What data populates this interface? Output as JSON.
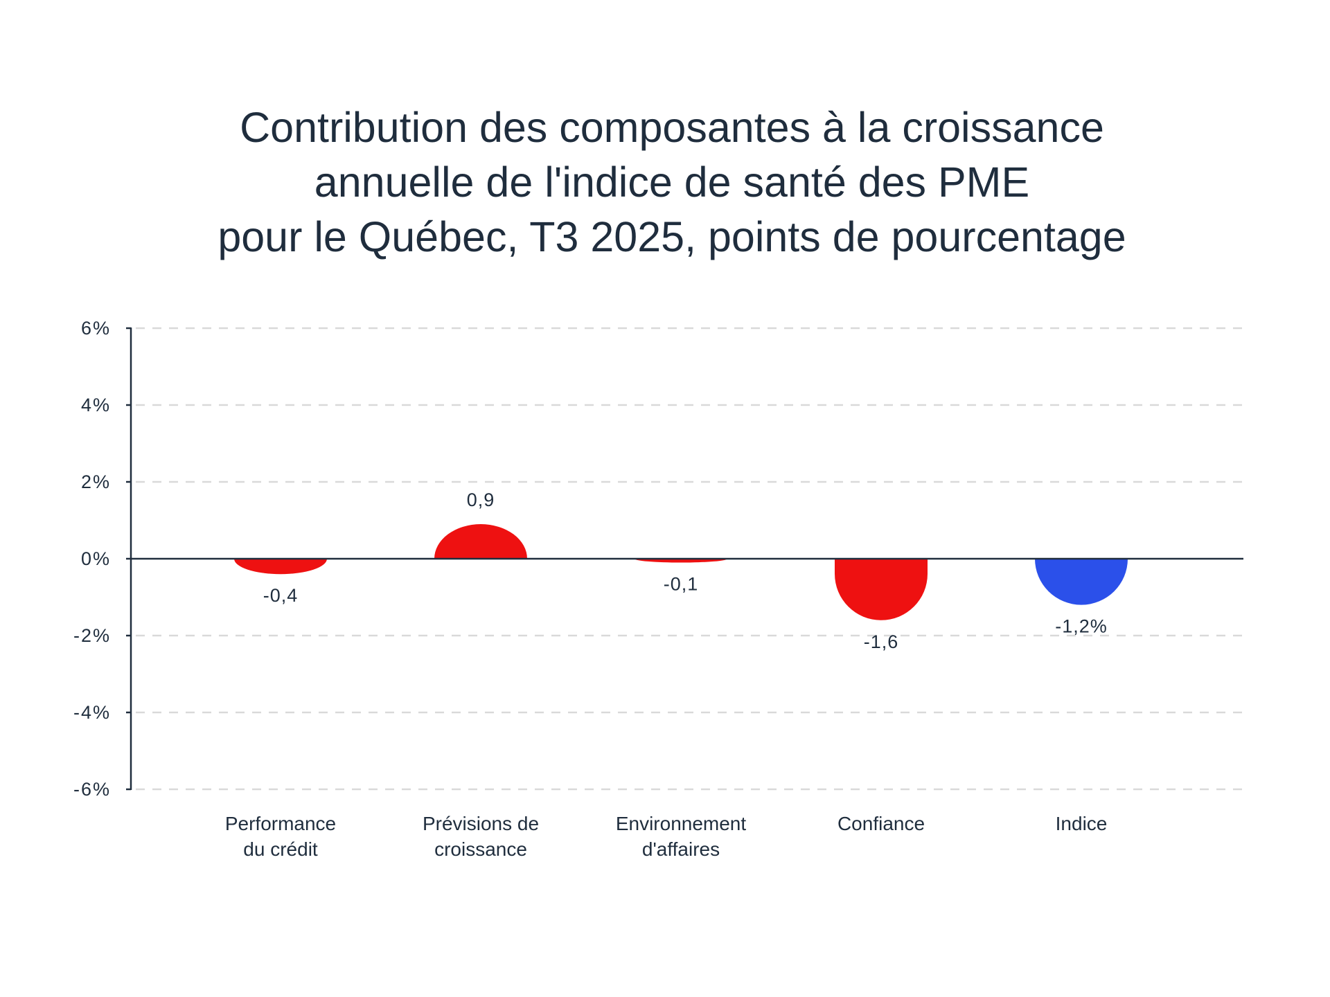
{
  "chart_data": {
    "type": "bar",
    "title_lines": [
      "Contribution des composantes à la croissance",
      "annuelle de l'indice de santé des PME",
      "pour le Québec, T3 2025, points de pourcentage"
    ],
    "categories": [
      [
        "Performance",
        "du crédit"
      ],
      [
        "Prévisions de",
        "croissance"
      ],
      [
        "Environnement",
        "d'affaires"
      ],
      [
        "Confiance"
      ],
      [
        "Indice"
      ]
    ],
    "values": [
      -0.4,
      0.9,
      -0.1,
      -1.6,
      -1.2
    ],
    "value_labels": [
      "-0,4",
      "0,9",
      "-0,1",
      "-1,6",
      "-1,2%"
    ],
    "colors": [
      "#ee1111",
      "#ee1111",
      "#ee1111",
      "#ee1111",
      "#2b50ea"
    ],
    "ylim": [
      -6,
      6
    ],
    "yticks": [
      6,
      4,
      2,
      0,
      -2,
      -4,
      -6
    ],
    "ytick_labels": [
      "6%",
      "4%",
      "2%",
      "0%",
      "-2%",
      "-4%",
      "-6%"
    ],
    "grid": true,
    "xlabel": "",
    "ylabel": ""
  }
}
